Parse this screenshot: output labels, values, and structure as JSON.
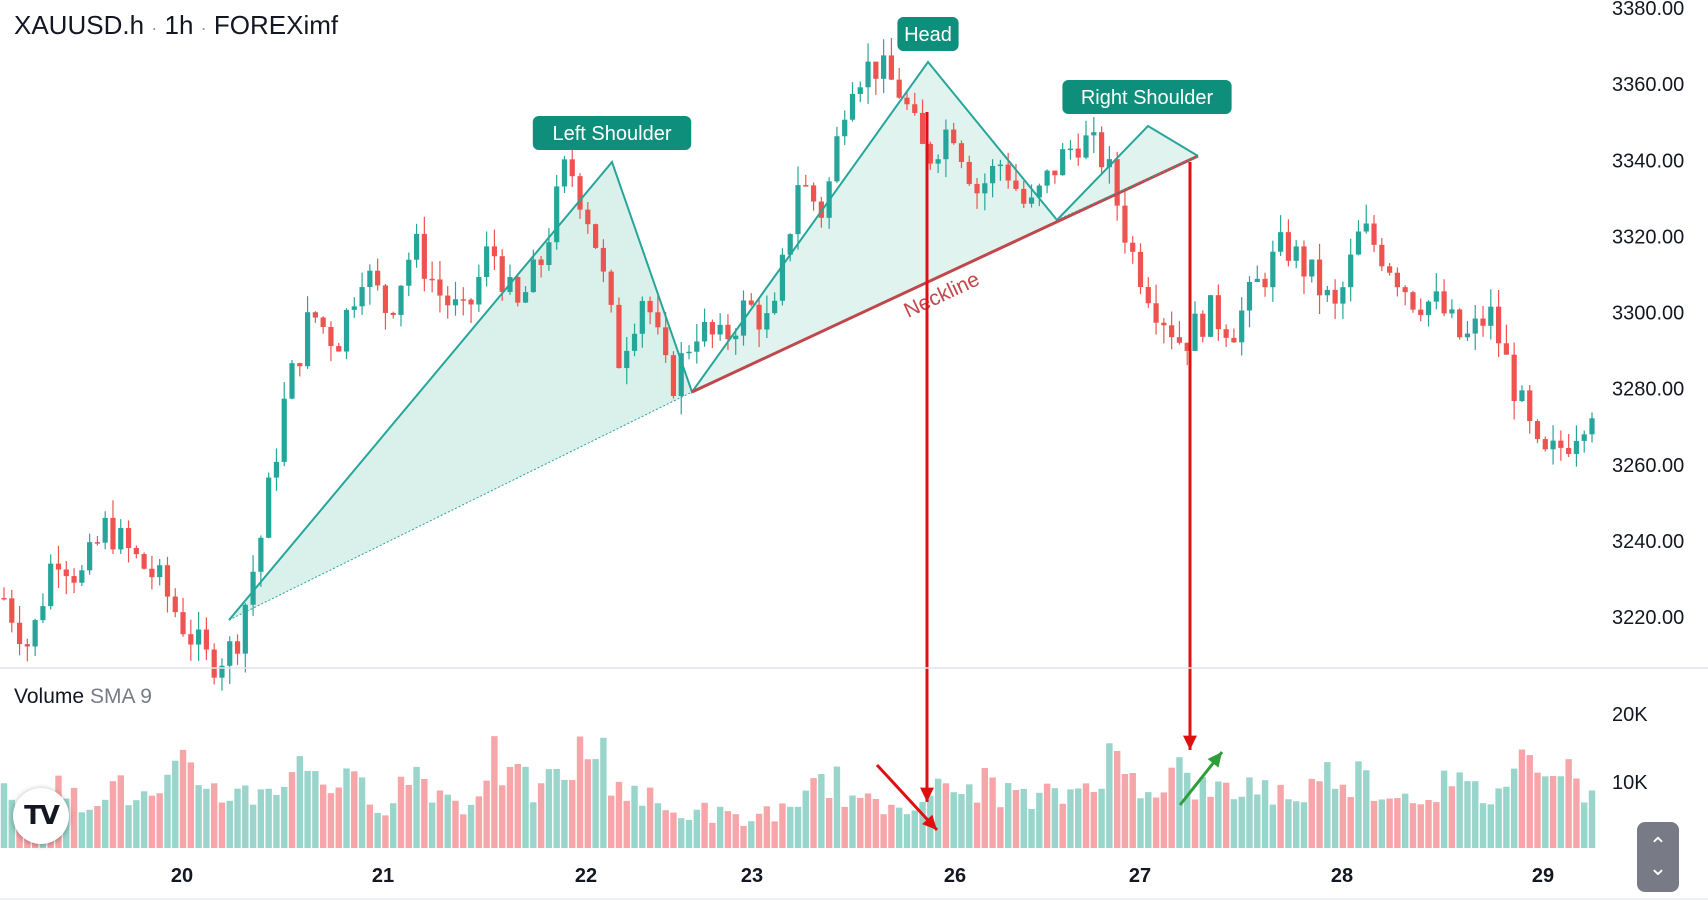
{
  "header": {
    "symbol": "XAUUSD.h",
    "interval": "1h",
    "source": "FOREXimf",
    "separator": "·"
  },
  "volume_panel": {
    "title": "Volume",
    "indicator": "SMA 9"
  },
  "logo_text": "TV",
  "scroll_icon": "chevron-up-down-icon",
  "colors": {
    "up": "#26a69a",
    "down": "#ef5350",
    "up_volume": "#9ad5cc",
    "down_volume": "#f6a5a8",
    "pattern_fill": "#d7efe9",
    "pattern_line": "#26a69a",
    "neckline": "#c0474b",
    "label_bg": "#0e8f7b",
    "arrow_red": "#e01010",
    "arrow_green": "#2e9e3a",
    "grid_line": "#e0e3eb",
    "axis_text": "#131722"
  },
  "chart_data": {
    "type": "candlestick",
    "price_axis": {
      "ticks": [
        "3380.00",
        "3360.00",
        "3340.00",
        "3320.00",
        "3300.00",
        "3280.00",
        "3260.00",
        "3240.00",
        "3220.00"
      ],
      "range": [
        3205,
        3383
      ]
    },
    "volume_axis": {
      "ticks": [
        "20K",
        "10K"
      ]
    },
    "time_axis": {
      "ticks": [
        "20",
        "21",
        "22",
        "23",
        "26",
        "27",
        "28",
        "29"
      ]
    },
    "annotations": {
      "left_shoulder": "Left Shoulder",
      "head": "Head",
      "right_shoulder": "Right Shoulder",
      "neckline": "Neckline"
    },
    "pattern_points": [
      {
        "date": "20",
        "price": 3218
      },
      {
        "date": "22",
        "price": 3341
      },
      {
        "date": "23",
        "price": 3278
      },
      {
        "date": "26",
        "price": 3367
      },
      {
        "date": "26-27",
        "price": 3324
      },
      {
        "date": "27",
        "price": 3349
      },
      {
        "date": "27",
        "price": 3341
      }
    ],
    "price_path": [
      3225,
      3212,
      3238,
      3230,
      3244,
      3236,
      3230,
      3218,
      3208,
      3212,
      3240,
      3278,
      3300,
      3292,
      3312,
      3300,
      3318,
      3305,
      3298,
      3318,
      3300,
      3314,
      3340,
      3322,
      3288,
      3306,
      3280,
      3296,
      3292,
      3302,
      3296,
      3335,
      3326,
      3362,
      3365,
      3358,
      3340,
      3350,
      3332,
      3340,
      3326,
      3338,
      3346,
      3340,
      3316,
      3302,
      3292,
      3300,
      3296,
      3308,
      3318,
      3310,
      3300,
      3322,
      3314,
      3304,
      3302,
      3292,
      3300,
      3280,
      3260,
      3266,
      3276
    ],
    "volume_path": [
      8,
      6,
      9,
      7,
      10,
      8,
      7,
      12,
      10,
      8,
      9,
      11,
      13,
      10,
      9,
      7,
      12,
      9,
      6,
      14,
      10,
      9,
      12,
      16,
      10,
      8,
      5,
      6,
      5,
      4,
      6,
      5,
      12,
      8,
      6,
      7,
      9,
      8,
      10,
      9,
      7,
      8,
      9,
      14,
      11,
      10,
      12,
      8,
      9,
      10,
      8,
      9,
      12,
      11,
      9,
      8,
      10,
      9,
      8,
      12,
      16,
      13,
      7
    ]
  }
}
